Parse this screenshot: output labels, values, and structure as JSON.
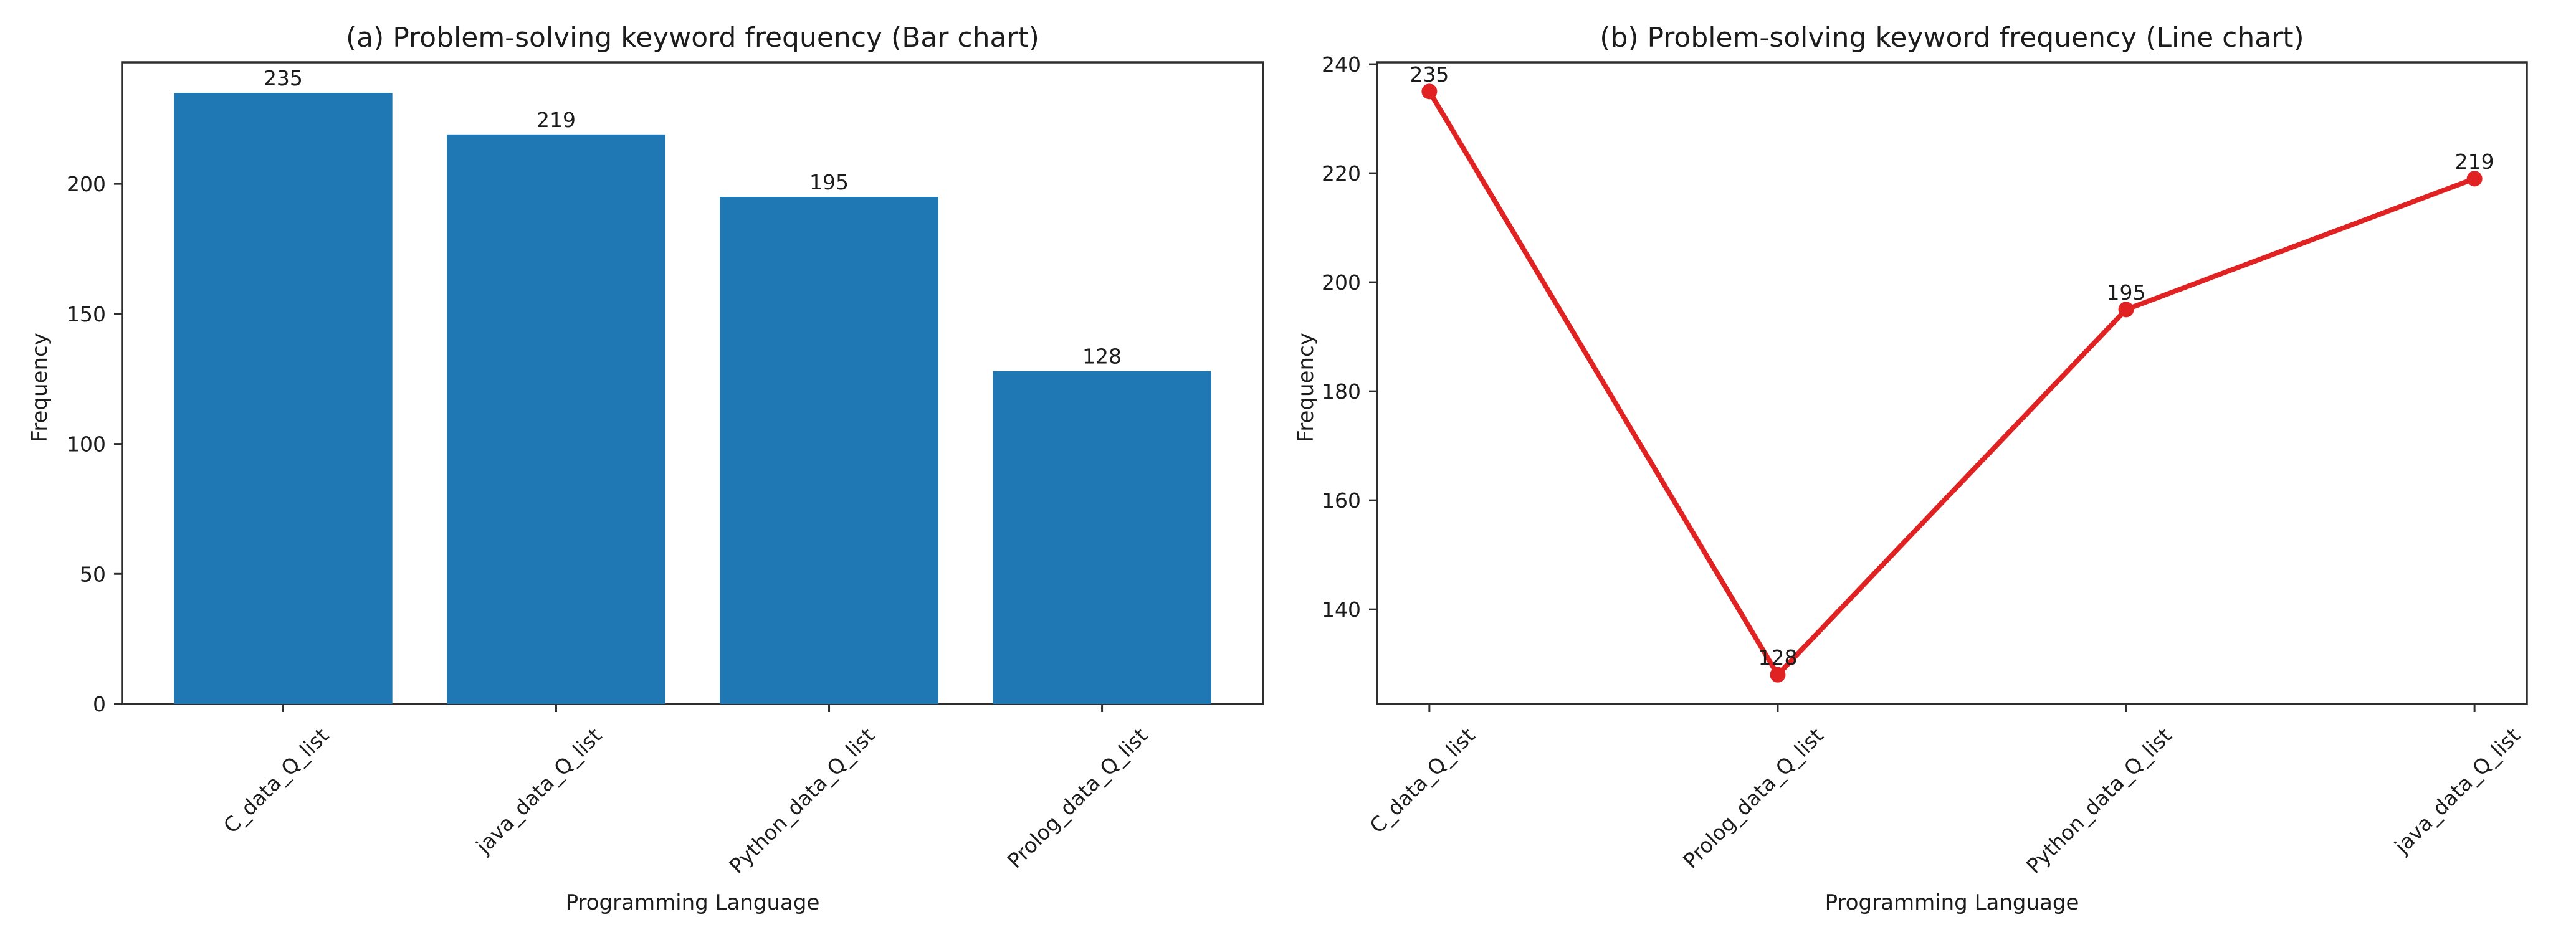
{
  "figure": {
    "background_color": "#ffffff",
    "text_color": "#1c1c1c",
    "axis_color": "#2e2e2e"
  },
  "chart_data": [
    {
      "type": "bar",
      "title": "(a) Problem-solving keyword frequency (Bar chart)",
      "xlabel": "Programming Language",
      "ylabel": "Frequency",
      "categories": [
        "C_data_Q_list",
        "java_data_Q_list",
        "Python_data_Q_list",
        "Prolog_data_Q_list"
      ],
      "values": [
        235,
        219,
        195,
        128
      ],
      "yticks": [
        0,
        50,
        100,
        150,
        200
      ],
      "ylim": [
        0,
        246.75
      ],
      "bar_color": "#1f77b4",
      "value_label_color": "#1c1c1c",
      "grid": false,
      "legend": null
    },
    {
      "type": "line",
      "title": "(b) Problem-solving keyword frequency (Line chart)",
      "xlabel": "Programming Language",
      "ylabel": "Frequency",
      "categories": [
        "C_data_Q_list",
        "Prolog_data_Q_list",
        "Python_data_Q_list",
        "java_data_Q_list"
      ],
      "values": [
        235,
        128,
        195,
        219
      ],
      "yticks": [
        140,
        160,
        180,
        200,
        220,
        240
      ],
      "ylim": [
        122.65,
        240.35
      ],
      "line_color": "#e02222",
      "marker": "circle",
      "value_label_color": "#1c1c1c",
      "grid": false,
      "legend": null
    }
  ]
}
